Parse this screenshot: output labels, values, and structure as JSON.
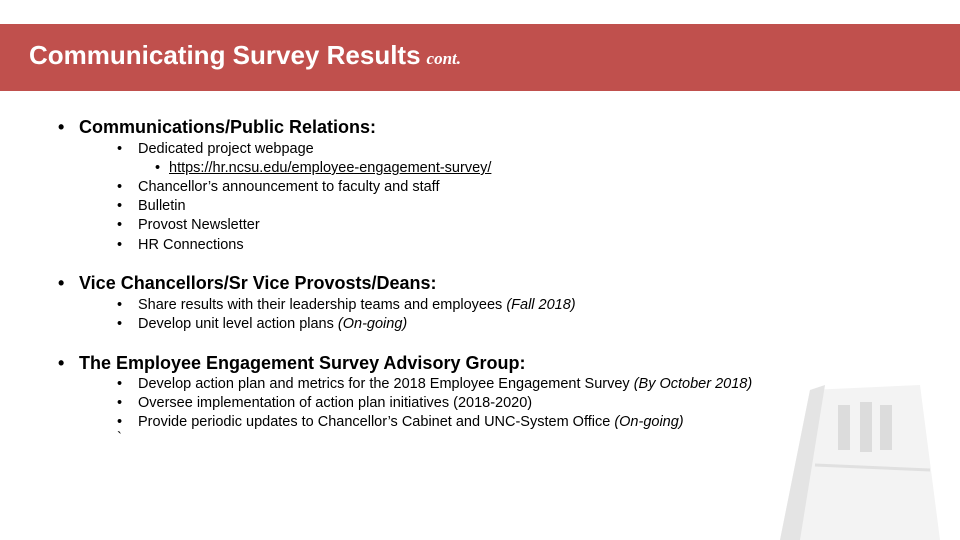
{
  "header": {
    "title": "Communicating Survey Results",
    "title_suffix": "cont."
  },
  "sections": [
    {
      "heading": "Communications/Public Relations:",
      "items": [
        {
          "text": "Dedicated project webpage",
          "sub": [
            "https://hr.ncsu.edu/employee-engagement-survey/"
          ]
        },
        {
          "text": "Chancellor’s announcement to faculty and staff"
        },
        {
          "text": "Bulletin"
        },
        {
          "text": "Provost Newsletter"
        },
        {
          "text": "HR Connections"
        }
      ]
    },
    {
      "heading": "Vice Chancellors/Sr Vice Provosts/Deans:",
      "items": [
        {
          "text": "Share results with their leadership teams and employees ",
          "note": "(Fall 2018)"
        },
        {
          "text": "Develop unit level action plans ",
          "note": "(On-going)"
        }
      ]
    },
    {
      "heading": "The Employee Engagement Survey Advisory Group:",
      "items": [
        {
          "text": "Develop action plan and metrics for the 2018 Employee Engagement Survey ",
          "note": "(By October 2018)"
        },
        {
          "text": "Oversee implementation of action plan initiatives (2018-2020)"
        },
        {
          "text": "Provide periodic updates to Chancellor’s Cabinet and UNC-System Office ",
          "note": "(On-going)"
        }
      ],
      "trailing": "`"
    }
  ],
  "bullet": "•",
  "colors": {
    "banner": "#c0504d",
    "banner_text": "#ffffff"
  }
}
